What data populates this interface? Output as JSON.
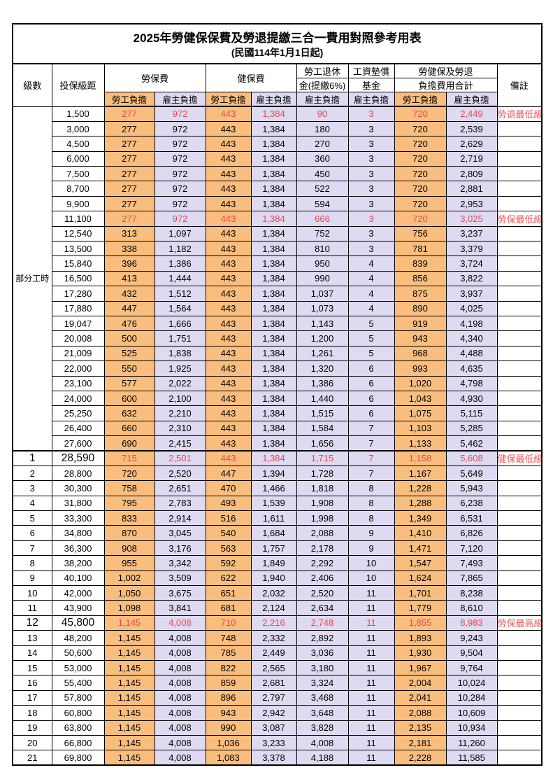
{
  "title": "2025年勞健保保費及勞退提繳三合一費用對照參考用表",
  "subtitle": "(民國114年1月1日起)",
  "header": {
    "level": "級數",
    "bracket": "投保級距",
    "labor_insurance": "勞保費",
    "health_insurance": "健保費",
    "pension_line1": "勞工退休",
    "pension_line2": "金(提繳6%)",
    "wage_fund_line1": "工資墊償",
    "wage_fund_line2": "基金",
    "total_line1": "勞健保及勞退",
    "total_line2": "負擔費用合計",
    "remark": "備註",
    "employee": "勞工負擔",
    "employer": "雇主負擔"
  },
  "part_time_label": "部分工時",
  "colors": {
    "employee_bg": "#f9be7e",
    "employer_bg": "#dedaf1",
    "highlight_text": "#e8484e",
    "remark_text": "#ee5a5e",
    "grid": "#000000"
  },
  "rows": [
    {
      "level": "",
      "bracket": "1,500",
      "v": [
        "277",
        "972",
        "443",
        "1,384",
        "90",
        "3",
        "720",
        "2,449"
      ],
      "remark": "勞退最低級距",
      "red": true,
      "big": false
    },
    {
      "level": "",
      "bracket": "3,000",
      "v": [
        "277",
        "972",
        "443",
        "1,384",
        "180",
        "3",
        "720",
        "2,539"
      ],
      "remark": "",
      "red": false,
      "big": false
    },
    {
      "level": "",
      "bracket": "4,500",
      "v": [
        "277",
        "972",
        "443",
        "1,384",
        "270",
        "3",
        "720",
        "2,629"
      ],
      "remark": "",
      "red": false,
      "big": false
    },
    {
      "level": "",
      "bracket": "6,000",
      "v": [
        "277",
        "972",
        "443",
        "1,384",
        "360",
        "3",
        "720",
        "2,719"
      ],
      "remark": "",
      "red": false,
      "big": false
    },
    {
      "level": "",
      "bracket": "7,500",
      "v": [
        "277",
        "972",
        "443",
        "1,384",
        "450",
        "3",
        "720",
        "2,809"
      ],
      "remark": "",
      "red": false,
      "big": false
    },
    {
      "level": "",
      "bracket": "8,700",
      "v": [
        "277",
        "972",
        "443",
        "1,384",
        "522",
        "3",
        "720",
        "2,881"
      ],
      "remark": "",
      "red": false,
      "big": false
    },
    {
      "level": "",
      "bracket": "9,900",
      "v": [
        "277",
        "972",
        "443",
        "1,384",
        "594",
        "3",
        "720",
        "2,953"
      ],
      "remark": "",
      "red": false,
      "big": false
    },
    {
      "level": "",
      "bracket": "11,100",
      "v": [
        "277",
        "972",
        "443",
        "1,384",
        "666",
        "3",
        "720",
        "3,025"
      ],
      "remark": "勞保最低級距",
      "red": true,
      "big": false
    },
    {
      "level": "",
      "bracket": "12,540",
      "v": [
        "313",
        "1,097",
        "443",
        "1,384",
        "752",
        "3",
        "756",
        "3,237"
      ],
      "remark": "",
      "red": false,
      "big": false
    },
    {
      "level": "",
      "bracket": "13,500",
      "v": [
        "338",
        "1,182",
        "443",
        "1,384",
        "810",
        "3",
        "781",
        "3,379"
      ],
      "remark": "",
      "red": false,
      "big": false
    },
    {
      "level": "",
      "bracket": "15,840",
      "v": [
        "396",
        "1,386",
        "443",
        "1,384",
        "950",
        "4",
        "839",
        "3,724"
      ],
      "remark": "",
      "red": false,
      "big": false
    },
    {
      "level": "",
      "bracket": "16,500",
      "v": [
        "413",
        "1,444",
        "443",
        "1,384",
        "990",
        "4",
        "856",
        "3,822"
      ],
      "remark": "",
      "red": false,
      "big": false
    },
    {
      "level": "",
      "bracket": "17,280",
      "v": [
        "432",
        "1,512",
        "443",
        "1,384",
        "1,037",
        "4",
        "875",
        "3,937"
      ],
      "remark": "",
      "red": false,
      "big": false
    },
    {
      "level": "",
      "bracket": "17,880",
      "v": [
        "447",
        "1,564",
        "443",
        "1,384",
        "1,073",
        "4",
        "890",
        "4,025"
      ],
      "remark": "",
      "red": false,
      "big": false
    },
    {
      "level": "",
      "bracket": "19,047",
      "v": [
        "476",
        "1,666",
        "443",
        "1,384",
        "1,143",
        "5",
        "919",
        "4,198"
      ],
      "remark": "",
      "red": false,
      "big": false
    },
    {
      "level": "",
      "bracket": "20,008",
      "v": [
        "500",
        "1,751",
        "443",
        "1,384",
        "1,200",
        "5",
        "943",
        "4,340"
      ],
      "remark": "",
      "red": false,
      "big": false
    },
    {
      "level": "",
      "bracket": "21,009",
      "v": [
        "525",
        "1,838",
        "443",
        "1,384",
        "1,261",
        "5",
        "968",
        "4,488"
      ],
      "remark": "",
      "red": false,
      "big": false
    },
    {
      "level": "",
      "bracket": "22,000",
      "v": [
        "550",
        "1,925",
        "443",
        "1,384",
        "1,320",
        "6",
        "993",
        "4,635"
      ],
      "remark": "",
      "red": false,
      "big": false
    },
    {
      "level": "",
      "bracket": "23,100",
      "v": [
        "577",
        "2,022",
        "443",
        "1,384",
        "1,386",
        "6",
        "1,020",
        "4,798"
      ],
      "remark": "",
      "red": false,
      "big": false
    },
    {
      "level": "",
      "bracket": "24,000",
      "v": [
        "600",
        "2,100",
        "443",
        "1,384",
        "1,440",
        "6",
        "1,043",
        "4,930"
      ],
      "remark": "",
      "red": false,
      "big": false
    },
    {
      "level": "",
      "bracket": "25,250",
      "v": [
        "632",
        "2,210",
        "443",
        "1,384",
        "1,515",
        "6",
        "1,075",
        "5,115"
      ],
      "remark": "",
      "red": false,
      "big": false
    },
    {
      "level": "",
      "bracket": "26,400",
      "v": [
        "660",
        "2,310",
        "443",
        "1,384",
        "1,584",
        "7",
        "1,103",
        "5,285"
      ],
      "remark": "",
      "red": false,
      "big": false
    },
    {
      "level": "",
      "bracket": "27,600",
      "v": [
        "690",
        "2,415",
        "443",
        "1,384",
        "1,656",
        "7",
        "1,133",
        "5,462"
      ],
      "remark": "",
      "red": false,
      "big": false
    },
    {
      "level": "1",
      "bracket": "28,590",
      "v": [
        "715",
        "2,501",
        "443",
        "1,384",
        "1,715",
        "7",
        "1,158",
        "5,608"
      ],
      "remark": "健保最低級距",
      "red": true,
      "big": true
    },
    {
      "level": "2",
      "bracket": "28,800",
      "v": [
        "720",
        "2,520",
        "447",
        "1,394",
        "1,728",
        "7",
        "1,167",
        "5,649"
      ],
      "remark": "",
      "red": false,
      "big": false
    },
    {
      "level": "3",
      "bracket": "30,300",
      "v": [
        "758",
        "2,651",
        "470",
        "1,466",
        "1,818",
        "8",
        "1,228",
        "5,943"
      ],
      "remark": "",
      "red": false,
      "big": false
    },
    {
      "level": "4",
      "bracket": "31,800",
      "v": [
        "795",
        "2,783",
        "493",
        "1,539",
        "1,908",
        "8",
        "1,288",
        "6,238"
      ],
      "remark": "",
      "red": false,
      "big": false
    },
    {
      "level": "5",
      "bracket": "33,300",
      "v": [
        "833",
        "2,914",
        "516",
        "1,611",
        "1,998",
        "8",
        "1,349",
        "6,531"
      ],
      "remark": "",
      "red": false,
      "big": false
    },
    {
      "level": "6",
      "bracket": "34,800",
      "v": [
        "870",
        "3,045",
        "540",
        "1,684",
        "2,088",
        "9",
        "1,410",
        "6,826"
      ],
      "remark": "",
      "red": false,
      "big": false
    },
    {
      "level": "7",
      "bracket": "36,300",
      "v": [
        "908",
        "3,176",
        "563",
        "1,757",
        "2,178",
        "9",
        "1,471",
        "7,120"
      ],
      "remark": "",
      "red": false,
      "big": false
    },
    {
      "level": "8",
      "bracket": "38,200",
      "v": [
        "955",
        "3,342",
        "592",
        "1,849",
        "2,292",
        "10",
        "1,547",
        "7,493"
      ],
      "remark": "",
      "red": false,
      "big": false
    },
    {
      "level": "9",
      "bracket": "40,100",
      "v": [
        "1,002",
        "3,509",
        "622",
        "1,940",
        "2,406",
        "10",
        "1,624",
        "7,865"
      ],
      "remark": "",
      "red": false,
      "big": false
    },
    {
      "level": "10",
      "bracket": "42,000",
      "v": [
        "1,050",
        "3,675",
        "651",
        "2,032",
        "2,520",
        "11",
        "1,701",
        "8,238"
      ],
      "remark": "",
      "red": false,
      "big": false
    },
    {
      "level": "11",
      "bracket": "43,900",
      "v": [
        "1,098",
        "3,841",
        "681",
        "2,124",
        "2,634",
        "11",
        "1,779",
        "8,610"
      ],
      "remark": "",
      "red": false,
      "big": false
    },
    {
      "level": "12",
      "bracket": "45,800",
      "v": [
        "1,145",
        "4,008",
        "710",
        "2,216",
        "2,748",
        "11",
        "1,855",
        "8,983"
      ],
      "remark": "勞保最高級距",
      "red": true,
      "big": true
    },
    {
      "level": "13",
      "bracket": "48,200",
      "v": [
        "1,145",
        "4,008",
        "748",
        "2,332",
        "2,892",
        "11",
        "1,893",
        "9,243"
      ],
      "remark": "",
      "red": false,
      "big": false
    },
    {
      "level": "14",
      "bracket": "50,600",
      "v": [
        "1,145",
        "4,008",
        "785",
        "2,449",
        "3,036",
        "11",
        "1,930",
        "9,504"
      ],
      "remark": "",
      "red": false,
      "big": false
    },
    {
      "level": "15",
      "bracket": "53,000",
      "v": [
        "1,145",
        "4,008",
        "822",
        "2,565",
        "3,180",
        "11",
        "1,967",
        "9,764"
      ],
      "remark": "",
      "red": false,
      "big": false
    },
    {
      "level": "16",
      "bracket": "55,400",
      "v": [
        "1,145",
        "4,008",
        "859",
        "2,681",
        "3,324",
        "11",
        "2,004",
        "10,024"
      ],
      "remark": "",
      "red": false,
      "big": false
    },
    {
      "level": "17",
      "bracket": "57,800",
      "v": [
        "1,145",
        "4,008",
        "896",
        "2,797",
        "3,468",
        "11",
        "2,041",
        "10,284"
      ],
      "remark": "",
      "red": false,
      "big": false
    },
    {
      "level": "18",
      "bracket": "60,800",
      "v": [
        "1,145",
        "4,008",
        "943",
        "2,942",
        "3,648",
        "11",
        "2,088",
        "10,609"
      ],
      "remark": "",
      "red": false,
      "big": false
    },
    {
      "level": "19",
      "bracket": "63,800",
      "v": [
        "1,145",
        "4,008",
        "990",
        "3,087",
        "3,828",
        "11",
        "2,135",
        "10,934"
      ],
      "remark": "",
      "red": false,
      "big": false
    },
    {
      "level": "20",
      "bracket": "66,800",
      "v": [
        "1,145",
        "4,008",
        "1,036",
        "3,233",
        "4,008",
        "11",
        "2,181",
        "11,260"
      ],
      "remark": "",
      "red": false,
      "big": false
    },
    {
      "level": "21",
      "bracket": "69,800",
      "v": [
        "1,145",
        "4,008",
        "1,083",
        "3,378",
        "4,188",
        "11",
        "2,228",
        "11,585"
      ],
      "remark": "",
      "red": false,
      "big": false
    }
  ]
}
